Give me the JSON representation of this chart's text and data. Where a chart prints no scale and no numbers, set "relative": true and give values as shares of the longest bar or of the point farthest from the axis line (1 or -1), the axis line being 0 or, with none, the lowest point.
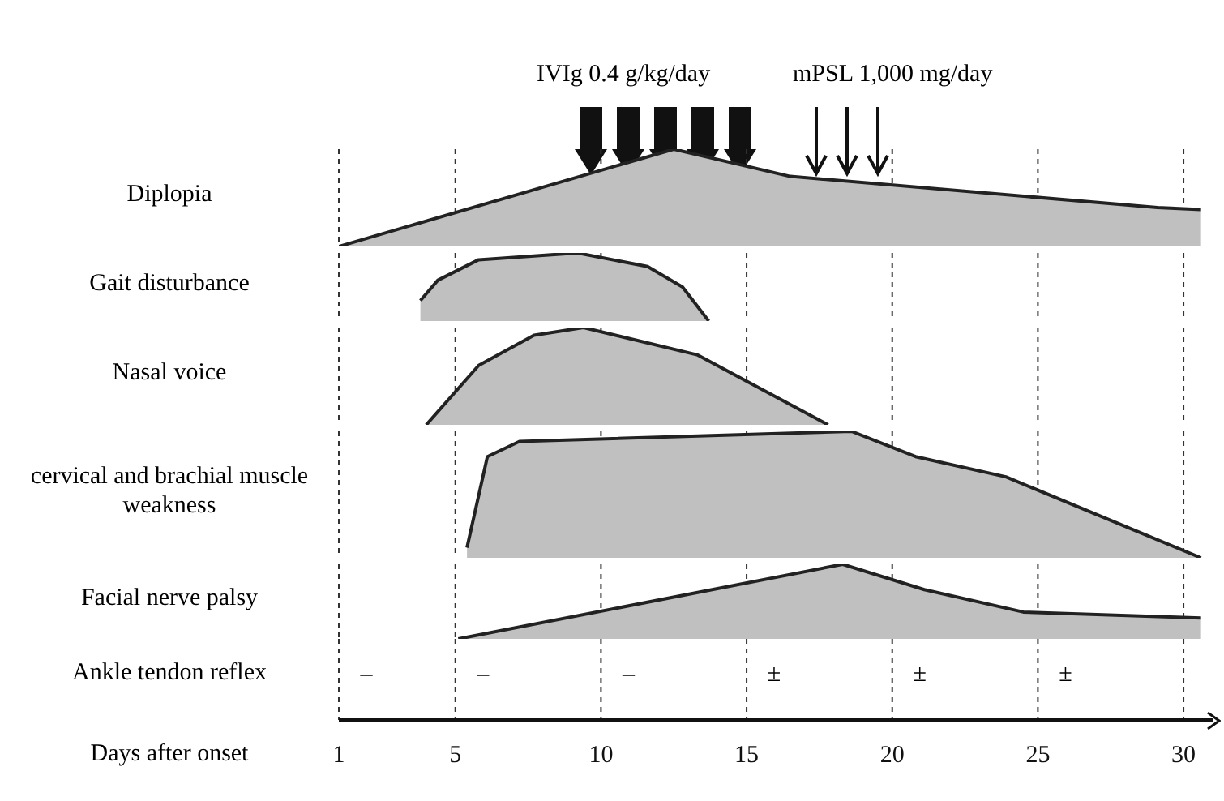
{
  "chart_data": [
    {
      "type": "area",
      "ylabel": "Diplopia",
      "annotations": [
        "IVIg 0.4 g/kg/day",
        "mPSL 1,000 mg/day"
      ],
      "relative": true,
      "x": [
        1,
        12.5,
        16.5,
        29.1,
        30.6
      ],
      "values": [
        0,
        1,
        0.72,
        0.4,
        0.38
      ],
      "color": "#c0c0c0",
      "xticks": [
        1,
        5,
        10,
        15,
        20,
        25,
        30
      ],
      "grid": "x",
      "tick_labels": false
    },
    {
      "type": "area",
      "ylabel": "Gait disturbance",
      "relative": true,
      "x": [
        3.8,
        4.4,
        5.8,
        9.2,
        11.6,
        12.8,
        13.7
      ],
      "values": [
        0.3,
        0.6,
        0.9,
        1,
        0.8,
        0.5,
        0
      ],
      "color": "#c0c0c0",
      "xticks": [
        1,
        5,
        10,
        15,
        20,
        25,
        30
      ],
      "grid": "x",
      "tick_labels": false
    },
    {
      "type": "area",
      "ylabel": "Nasal voice",
      "relative": true,
      "x": [
        4,
        5.8,
        7.7,
        9.4,
        13.3,
        17.8
      ],
      "values": [
        0,
        0.61,
        0.92,
        1,
        0.72,
        0
      ],
      "color": "#c0c0c0",
      "xticks": [
        1,
        5,
        10,
        15,
        20,
        25,
        30
      ],
      "grid": "x",
      "tick_labels": false
    },
    {
      "type": "area",
      "ylabel": "cervical and brachial muscle weakness",
      "relative": true,
      "x": [
        5.4,
        6.1,
        7.2,
        18.6,
        20.8,
        23.9,
        30.6
      ],
      "values": [
        0.08,
        0.8,
        0.92,
        1,
        0.8,
        0.64,
        0
      ],
      "color": "#c0c0c0",
      "xticks": [
        1,
        5,
        10,
        15,
        20,
        25,
        30
      ],
      "grid": "x",
      "tick_labels": false
    },
    {
      "type": "area",
      "ylabel": "Facial nerve palsy",
      "xlabel": "Days after onset",
      "annotations": [
        "Ankle tendon reflex",
        "–",
        "–",
        "–",
        "±",
        "±",
        "±"
      ],
      "relative": true,
      "x": [
        5.1,
        18.3,
        21.1,
        24.5,
        30.6
      ],
      "values": [
        0,
        1,
        0.66,
        0.36,
        0.28
      ],
      "color": "#c0c0c0",
      "xlim": [
        1,
        31
      ],
      "xticks": [
        1,
        5,
        10,
        15,
        20,
        25,
        30
      ],
      "grid": "x"
    }
  ]
}
